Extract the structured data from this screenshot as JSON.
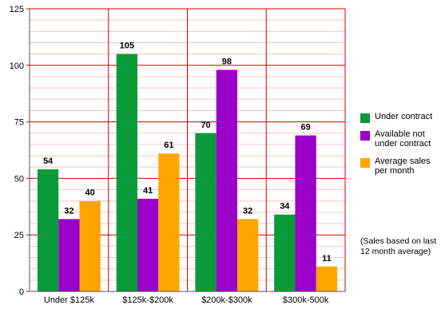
{
  "chart_data": {
    "type": "bar",
    "categories": [
      "Under $125k",
      "$125k-$200k",
      "$200k-$300k",
      "$300k-500k"
    ],
    "series": [
      {
        "name": "Under contract",
        "values": [
          54,
          105,
          70,
          34
        ],
        "color": "#0a9a3a"
      },
      {
        "name": "Available not under contract",
        "values": [
          32,
          41,
          98,
          69
        ],
        "color": "#9a00c8"
      },
      {
        "name": "Average sales per month",
        "values": [
          40,
          61,
          32,
          11
        ],
        "color": "#ffa500"
      }
    ],
    "yticks": [
      0,
      25,
      50,
      75,
      100,
      125
    ],
    "ylim": [
      0,
      125
    ],
    "grid": true,
    "grid_color": "#d40000",
    "legend_position": "right",
    "annotation": "(Sales based on last\n12 month average)"
  }
}
